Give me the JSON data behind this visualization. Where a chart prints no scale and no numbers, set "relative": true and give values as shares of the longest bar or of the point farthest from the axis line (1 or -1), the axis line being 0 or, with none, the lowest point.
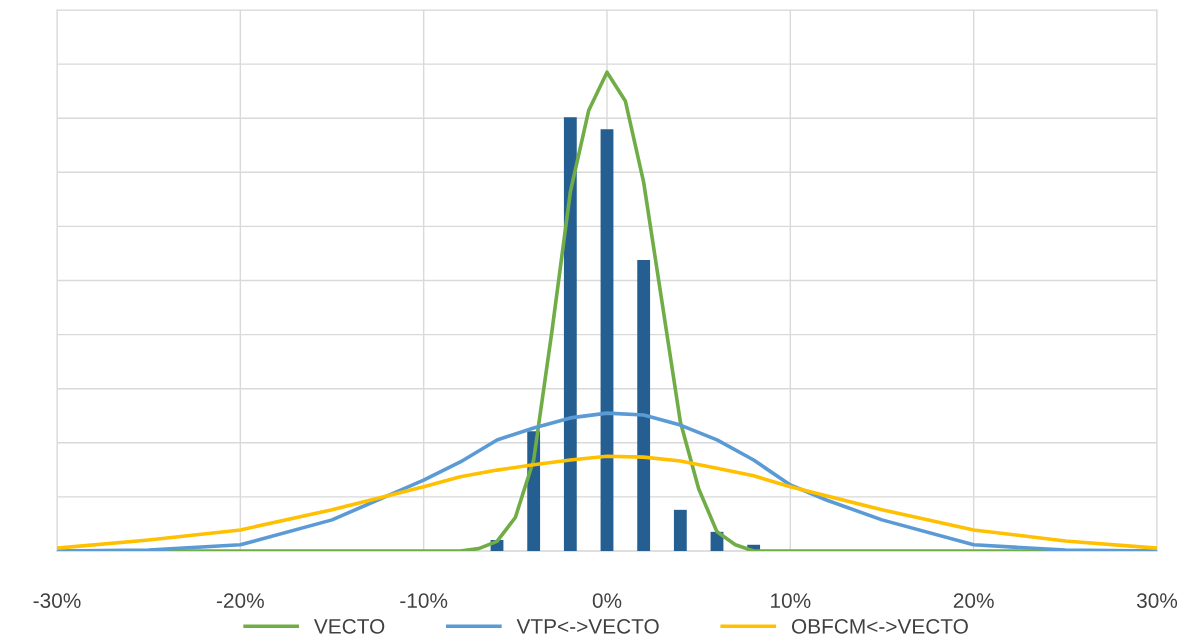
{
  "chart_data": {
    "type": "line",
    "relative": true,
    "grid": true,
    "legend": "bottom",
    "xlim": [
      -30,
      30
    ],
    "xticks": [
      {
        "value": -30,
        "label": "-30%"
      },
      {
        "value": -20,
        "label": "-20%"
      },
      {
        "value": -10,
        "label": "-10%"
      },
      {
        "value": 0,
        "label": "0%"
      },
      {
        "value": 10,
        "label": "10%"
      },
      {
        "value": 20,
        "label": "20%"
      },
      {
        "value": 30,
        "label": "30%"
      }
    ],
    "series": [
      {
        "type": "bar",
        "color": "#255e91",
        "x": [
          -6,
          -4,
          -2,
          0,
          2,
          4,
          6,
          8
        ],
        "values": [
          0.023,
          0.25,
          0.906,
          0.881,
          0.608,
          0.086,
          0.04,
          0.013
        ]
      },
      {
        "name": "VECTO",
        "color": "#70ad47",
        "x": [
          -30,
          -20,
          -10,
          -8,
          -7,
          -6,
          -5,
          -4,
          -3,
          -2,
          -1,
          0,
          1,
          2,
          3,
          4,
          5,
          6,
          7,
          8,
          10,
          20,
          30
        ],
        "values": [
          0,
          0,
          0,
          0,
          0.005,
          0.02,
          0.07,
          0.19,
          0.46,
          0.75,
          0.92,
          1.0,
          0.94,
          0.77,
          0.52,
          0.27,
          0.13,
          0.04,
          0.013,
          0,
          0,
          0,
          0
        ]
      },
      {
        "name": "VTP<->VECTO",
        "color": "#5b9bd5",
        "x": [
          -30,
          -25,
          -20,
          -15,
          -10,
          -8,
          -6,
          -4,
          -2,
          0,
          2,
          4,
          6,
          8,
          10,
          12,
          15,
          20,
          25,
          30
        ],
        "values": [
          0,
          0.002,
          0.013,
          0.065,
          0.148,
          0.186,
          0.232,
          0.257,
          0.278,
          0.288,
          0.284,
          0.263,
          0.232,
          0.19,
          0.138,
          0.106,
          0.065,
          0.013,
          0.002,
          0
        ]
      },
      {
        "name": "OBFCM<->VECTO",
        "color": "#ffc000",
        "x": [
          -30,
          -25,
          -20,
          -15,
          -10,
          -8,
          -6,
          -4,
          -2,
          0,
          2,
          4,
          6,
          8,
          10,
          15,
          20,
          25,
          30
        ],
        "values": [
          0.006,
          0.023,
          0.044,
          0.086,
          0.134,
          0.155,
          0.169,
          0.18,
          0.19,
          0.198,
          0.196,
          0.188,
          0.173,
          0.157,
          0.134,
          0.086,
          0.044,
          0.021,
          0.006
        ]
      }
    ]
  }
}
